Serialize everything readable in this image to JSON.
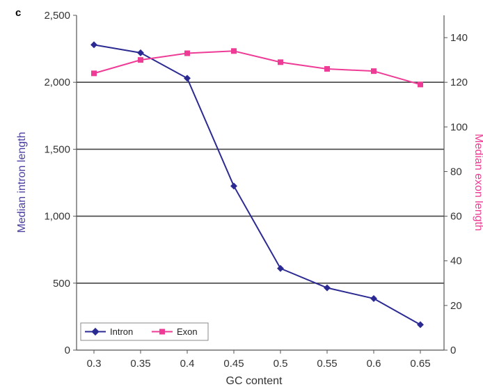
{
  "panel_label": "c",
  "chart_data": {
    "type": "line",
    "x": [
      0.3,
      0.35,
      0.4,
      0.45,
      0.5,
      0.55,
      0.6,
      0.65
    ],
    "x_tick_labels": [
      "0.3",
      "0.35",
      "0.4",
      "0.45",
      "0.5",
      "0.55",
      "0.6",
      "0.65"
    ],
    "xlabel": "GC content",
    "ylabel_left": "Median intron length",
    "ylabel_right": "Median exon length",
    "ylim_left": [
      0,
      2500
    ],
    "ylim_right": [
      0,
      150
    ],
    "y_left_ticks": [
      0,
      500,
      1000,
      1500,
      2000,
      2500
    ],
    "y_left_tick_labels": [
      "0",
      "500",
      "1,000",
      "1,500",
      "2,000",
      "2,500"
    ],
    "y_right_ticks": [
      0,
      20,
      40,
      60,
      80,
      100,
      120,
      140
    ],
    "y_right_tick_labels": [
      "0",
      "20",
      "40",
      "60",
      "80",
      "100",
      "120",
      "140"
    ],
    "gridlines": [
      500,
      1000,
      1500,
      2000
    ],
    "legend_position": "bottom-left",
    "series": [
      {
        "name": "Intron",
        "axis": "left",
        "color": "#2b2a92",
        "marker": "diamond",
        "values": [
          2280,
          2220,
          2030,
          1225,
          610,
          465,
          385,
          190
        ]
      },
      {
        "name": "Exon",
        "axis": "right",
        "color": "#ee3c96",
        "marker": "square",
        "values": [
          124,
          130,
          133,
          134,
          129,
          126,
          125,
          119
        ]
      }
    ],
    "colors": {
      "left_axis_title": "#4a3fa0",
      "right_axis_title": "#ee3c96",
      "axis": "#555555",
      "grid": "#444444"
    }
  }
}
